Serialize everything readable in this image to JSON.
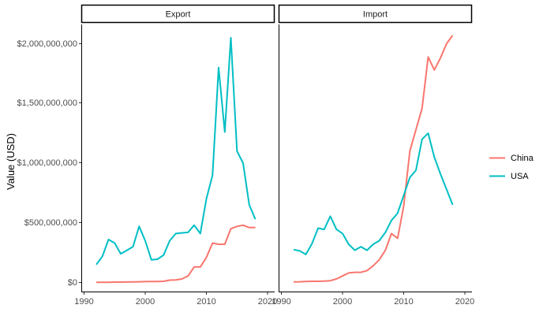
{
  "chart_data": {
    "type": "line",
    "facets": [
      "Export",
      "Import"
    ],
    "ylabel": "Value (USD)",
    "xlabel": "",
    "xlim": [
      1990,
      2020
    ],
    "ylim": [
      0,
      2050000000
    ],
    "x_ticks": [
      1990,
      2000,
      2010,
      2020
    ],
    "x_tick_labels": [
      "1990",
      "2000",
      "2010",
      "2020"
    ],
    "y_ticks": [
      0,
      500000000,
      1000000000,
      1500000000,
      2000000000
    ],
    "y_tick_labels": [
      "$0",
      "$500,000,000",
      "$1,000,000,000",
      "$1,500,000,000",
      "$2,000,000,000"
    ],
    "legend_position": "right",
    "legend": [
      {
        "name": "China",
        "color": "#F8766D"
      },
      {
        "name": "USA",
        "color": "#00BFC4"
      }
    ],
    "series": [
      {
        "facet": "Export",
        "name": "China",
        "color": "#F8766D",
        "x": [
          1992,
          1993,
          1994,
          1995,
          1996,
          1997,
          1998,
          1999,
          2000,
          2001,
          2002,
          2003,
          2004,
          2005,
          2006,
          2007,
          2008,
          2009,
          2010,
          2011,
          2012,
          2013,
          2014,
          2015,
          2016,
          2017,
          2018
        ],
        "y": [
          1000000,
          2000000,
          2000000,
          3000000,
          3000000,
          4000000,
          5000000,
          6000000,
          7000000,
          8000000,
          8000000,
          10000000,
          20000000,
          22000000,
          30000000,
          55000000,
          130000000,
          130000000,
          210000000,
          330000000,
          320000000,
          320000000,
          450000000,
          470000000,
          480000000,
          460000000,
          460000000
        ]
      },
      {
        "facet": "Export",
        "name": "USA",
        "color": "#00BFC4",
        "x": [
          1992,
          1993,
          1994,
          1995,
          1996,
          1997,
          1998,
          1999,
          2000,
          2001,
          2002,
          2003,
          2004,
          2005,
          2006,
          2007,
          2008,
          2009,
          2010,
          2011,
          2012,
          2013,
          2014,
          2015,
          2016,
          2017,
          2018
        ],
        "y": [
          150000000,
          220000000,
          360000000,
          330000000,
          240000000,
          270000000,
          300000000,
          470000000,
          350000000,
          190000000,
          195000000,
          230000000,
          350000000,
          410000000,
          415000000,
          420000000,
          480000000,
          410000000,
          700000000,
          900000000,
          1800000000,
          1260000000,
          2050000000,
          1100000000,
          1000000000,
          650000000,
          530000000
        ]
      },
      {
        "facet": "Import",
        "name": "China",
        "color": "#F8766D",
        "x": [
          1992,
          1993,
          1994,
          1995,
          1996,
          1997,
          1998,
          1999,
          2000,
          2001,
          2002,
          2003,
          2004,
          2005,
          2006,
          2007,
          2008,
          2009,
          2010,
          2011,
          2012,
          2013,
          2014,
          2015,
          2016,
          2017,
          2018
        ],
        "y": [
          5000000,
          6000000,
          8000000,
          10000000,
          10000000,
          12000000,
          15000000,
          30000000,
          55000000,
          80000000,
          85000000,
          85000000,
          100000000,
          140000000,
          190000000,
          270000000,
          410000000,
          370000000,
          640000000,
          1100000000,
          1280000000,
          1460000000,
          1890000000,
          1780000000,
          1880000000,
          2000000000,
          2070000000
        ]
      },
      {
        "facet": "Import",
        "name": "USA",
        "color": "#00BFC4",
        "x": [
          1992,
          1993,
          1994,
          1995,
          1996,
          1997,
          1998,
          1999,
          2000,
          2001,
          2002,
          2003,
          2004,
          2005,
          2006,
          2007,
          2008,
          2009,
          2010,
          2011,
          2012,
          2013,
          2014,
          2015,
          2016,
          2017,
          2018
        ],
        "y": [
          275000000,
          265000000,
          235000000,
          325000000,
          455000000,
          445000000,
          555000000,
          445000000,
          410000000,
          320000000,
          270000000,
          300000000,
          270000000,
          320000000,
          350000000,
          420000000,
          520000000,
          580000000,
          730000000,
          880000000,
          940000000,
          1200000000,
          1250000000,
          1050000000,
          910000000,
          780000000,
          650000000
        ]
      }
    ]
  }
}
